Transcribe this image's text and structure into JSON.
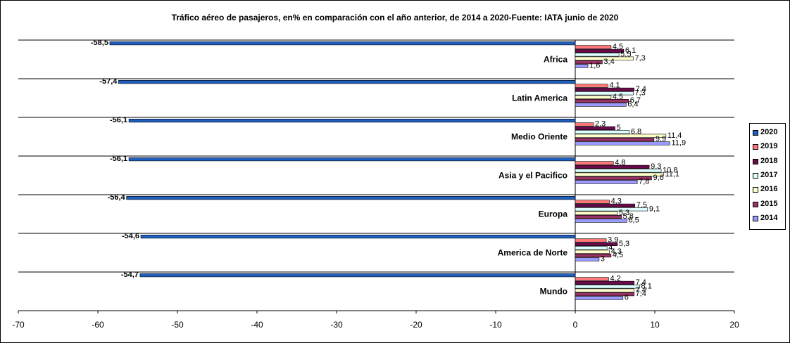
{
  "chart_data": {
    "type": "bar",
    "orientation": "horizontal",
    "title": "Tráfico aéreo de pasajeros, en% en comparación con el año anterior, de 2014 a 2020-Fuente: IATA junio de 2020",
    "categories": [
      "Africa",
      "Latin America",
      "Medio Oriente",
      "Asia y el Pacifico",
      "Europa",
      "America de Norte",
      "Mundo"
    ],
    "series": [
      {
        "name": "2020",
        "color": "#1f5fbf",
        "values": [
          -58.5,
          -57.4,
          -56.1,
          -56.1,
          -56.4,
          -54.6,
          -54.7
        ],
        "labels": [
          "-58,5",
          "-57,4",
          "-56,1",
          "-56,1",
          "-56,4",
          "-54,6",
          "-54,7"
        ]
      },
      {
        "name": "2019",
        "color": "#ff7777",
        "values": [
          4.5,
          4.1,
          2.3,
          4.8,
          4.3,
          3.9,
          4.2
        ],
        "labels": [
          "4,5",
          "4,1",
          "2,3",
          "4,8",
          "4,3",
          "3,9",
          "4,2"
        ]
      },
      {
        "name": "2018",
        "color": "#6a0a4a",
        "values": [
          6.1,
          7.4,
          5,
          9.3,
          7.5,
          5.3,
          7.4
        ],
        "labels": [
          "6,1",
          "7,4",
          "5",
          "9,3",
          "7,5",
          "5,3",
          "7,4"
        ]
      },
      {
        "name": "2017",
        "color": "#ddffff",
        "values": [
          5.5,
          7.3,
          6.8,
          10.8,
          9.1,
          4,
          8.1
        ],
        "labels": [
          "5,5",
          "7,3",
          "6,8",
          "10,8",
          "9,1",
          "4",
          "8,1"
        ]
      },
      {
        "name": "2016",
        "color": "#ffffcc",
        "values": [
          7.3,
          4.5,
          11.4,
          11.1,
          5.3,
          4.3,
          7.4
        ],
        "labels": [
          "7,3",
          "4,5",
          "11,4",
          "11,1",
          "5,3",
          "4,3",
          "7,4"
        ]
      },
      {
        "name": "2015",
        "color": "#993366",
        "values": [
          3.4,
          6.7,
          9.9,
          9.6,
          5.8,
          4.5,
          7.4
        ],
        "labels": [
          "3,4",
          "6,7",
          "9,9",
          "9,6",
          "5,8",
          "4,5",
          "7,4"
        ]
      },
      {
        "name": "2014",
        "color": "#9999ff",
        "values": [
          1.6,
          6.4,
          11.9,
          7.8,
          6.5,
          3,
          6
        ],
        "labels": [
          "1,6",
          "6,4",
          "11,9",
          "7,8",
          "6,5",
          "3",
          "6"
        ]
      }
    ],
    "xlim": [
      -70,
      20
    ],
    "xticks": [
      "-70",
      "-60",
      "-50",
      "-40",
      "-30",
      "-20",
      "-10",
      "0",
      "10",
      "20"
    ],
    "xlabel": "",
    "ylabel": "",
    "grid": true,
    "legend_position": "right"
  }
}
